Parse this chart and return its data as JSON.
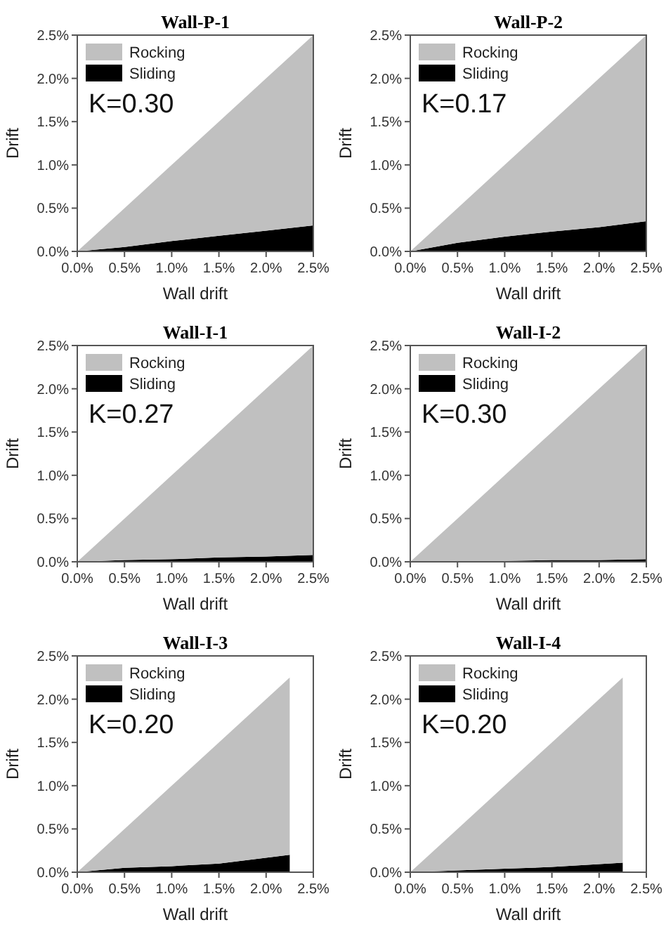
{
  "chart_data": [
    {
      "type": "area",
      "stacked": true,
      "title": "Wall-P-1",
      "xlabel": "Wall drift",
      "ylabel": "Drift",
      "annotations": [
        "K=0.30"
      ],
      "legend": "top left",
      "grid": false,
      "x": [
        0,
        0.5,
        1,
        1.5,
        2,
        2.5
      ],
      "xlim": [
        0,
        2.5
      ],
      "ylim": [
        0,
        2.5
      ],
      "xticks": [
        {
          "value": 0,
          "label": "0.0%"
        },
        {
          "value": 0.5,
          "label": "0.5%"
        },
        {
          "value": 1,
          "label": "1.0%"
        },
        {
          "value": 1.5,
          "label": "1.5%"
        },
        {
          "value": 2,
          "label": "2.0%"
        },
        {
          "value": 2.5,
          "label": "2.5%"
        }
      ],
      "yticks": [
        {
          "value": 0,
          "label": "0.0%"
        },
        {
          "value": 0.5,
          "label": "0.5%"
        },
        {
          "value": 1,
          "label": "1.0%"
        },
        {
          "value": 1.5,
          "label": "1.5%"
        },
        {
          "value": 2,
          "label": "2.0%"
        },
        {
          "value": 2.5,
          "label": "2.5%"
        }
      ],
      "series": [
        {
          "name": "Sliding",
          "color": "#000000",
          "values": [
            0,
            0.05,
            0.12,
            0.18,
            0.24,
            0.3
          ]
        },
        {
          "name": "Rocking",
          "color": "#c0c0c0",
          "values": [
            0,
            0.45,
            0.88,
            1.32,
            1.76,
            2.2
          ]
        }
      ]
    },
    {
      "type": "area",
      "stacked": true,
      "title": "Wall-P-2",
      "xlabel": "Wall drift",
      "ylabel": "Drift",
      "annotations": [
        "K=0.17"
      ],
      "legend": "top left",
      "grid": false,
      "x": [
        0,
        0.5,
        1,
        1.5,
        2,
        2.5
      ],
      "xlim": [
        0,
        2.5
      ],
      "ylim": [
        0,
        2.5
      ],
      "xticks": [
        {
          "value": 0,
          "label": "0.0%"
        },
        {
          "value": 0.5,
          "label": "0.5%"
        },
        {
          "value": 1,
          "label": "1.0%"
        },
        {
          "value": 1.5,
          "label": "1.5%"
        },
        {
          "value": 2,
          "label": "2.0%"
        },
        {
          "value": 2.5,
          "label": "2.5%"
        }
      ],
      "yticks": [
        {
          "value": 0,
          "label": "0.0%"
        },
        {
          "value": 0.5,
          "label": "0.5%"
        },
        {
          "value": 1,
          "label": "1.0%"
        },
        {
          "value": 1.5,
          "label": "1.5%"
        },
        {
          "value": 2,
          "label": "2.0%"
        },
        {
          "value": 2.5,
          "label": "2.5%"
        }
      ],
      "series": [
        {
          "name": "Sliding",
          "color": "#000000",
          "values": [
            0,
            0.1,
            0.17,
            0.23,
            0.28,
            0.35
          ]
        },
        {
          "name": "Rocking",
          "color": "#c0c0c0",
          "values": [
            0,
            0.4,
            0.83,
            1.27,
            1.72,
            2.15
          ]
        }
      ]
    },
    {
      "type": "area",
      "stacked": true,
      "title": "Wall-I-1",
      "xlabel": "Wall drift",
      "ylabel": "Drift",
      "annotations": [
        "K=0.27"
      ],
      "legend": "top left",
      "grid": false,
      "x": [
        0,
        0.5,
        1,
        1.5,
        2,
        2.5
      ],
      "xlim": [
        0,
        2.5
      ],
      "ylim": [
        0,
        2.5
      ],
      "xticks": [
        {
          "value": 0,
          "label": "0.0%"
        },
        {
          "value": 0.5,
          "label": "0.5%"
        },
        {
          "value": 1,
          "label": "1.0%"
        },
        {
          "value": 1.5,
          "label": "1.5%"
        },
        {
          "value": 2,
          "label": "2.0%"
        },
        {
          "value": 2.5,
          "label": "2.5%"
        }
      ],
      "yticks": [
        {
          "value": 0,
          "label": "0.0%"
        },
        {
          "value": 0.5,
          "label": "0.5%"
        },
        {
          "value": 1,
          "label": "1.0%"
        },
        {
          "value": 1.5,
          "label": "1.5%"
        },
        {
          "value": 2,
          "label": "2.0%"
        },
        {
          "value": 2.5,
          "label": "2.5%"
        }
      ],
      "series": [
        {
          "name": "Sliding",
          "color": "#000000",
          "values": [
            0,
            0.02,
            0.03,
            0.05,
            0.06,
            0.08
          ]
        },
        {
          "name": "Rocking",
          "color": "#c0c0c0",
          "values": [
            0,
            0.48,
            0.97,
            1.45,
            1.94,
            2.42
          ]
        }
      ]
    },
    {
      "type": "area",
      "stacked": true,
      "title": "Wall-I-2",
      "xlabel": "Wall drift",
      "ylabel": "Drift",
      "annotations": [
        "K=0.30"
      ],
      "legend": "top left",
      "grid": false,
      "x": [
        0,
        0.5,
        1,
        1.5,
        2,
        2.5
      ],
      "xlim": [
        0,
        2.5
      ],
      "ylim": [
        0,
        2.5
      ],
      "xticks": [
        {
          "value": 0,
          "label": "0.0%"
        },
        {
          "value": 0.5,
          "label": "0.5%"
        },
        {
          "value": 1,
          "label": "1.0%"
        },
        {
          "value": 1.5,
          "label": "1.5%"
        },
        {
          "value": 2,
          "label": "2.0%"
        },
        {
          "value": 2.5,
          "label": "2.5%"
        }
      ],
      "yticks": [
        {
          "value": 0,
          "label": "0.0%"
        },
        {
          "value": 0.5,
          "label": "0.5%"
        },
        {
          "value": 1,
          "label": "1.0%"
        },
        {
          "value": 1.5,
          "label": "1.5%"
        },
        {
          "value": 2,
          "label": "2.0%"
        },
        {
          "value": 2.5,
          "label": "2.5%"
        }
      ],
      "series": [
        {
          "name": "Sliding",
          "color": "#000000",
          "values": [
            0,
            0.01,
            0.01,
            0.02,
            0.02,
            0.03
          ]
        },
        {
          "name": "Rocking",
          "color": "#c0c0c0",
          "values": [
            0,
            0.49,
            0.99,
            1.48,
            1.98,
            2.47
          ]
        }
      ]
    },
    {
      "type": "area",
      "stacked": true,
      "title": "Wall-I-3",
      "xlabel": "Wall drift",
      "ylabel": "Drift",
      "annotations": [
        "K=0.20"
      ],
      "legend": "top left",
      "grid": false,
      "x": [
        0,
        0.5,
        1,
        1.5,
        2.25
      ],
      "xlim": [
        0,
        2.5
      ],
      "ylim": [
        0,
        2.5
      ],
      "xticks": [
        {
          "value": 0,
          "label": "0.0%"
        },
        {
          "value": 0.5,
          "label": "0.5%"
        },
        {
          "value": 1,
          "label": "1.0%"
        },
        {
          "value": 1.5,
          "label": "1.5%"
        },
        {
          "value": 2,
          "label": "2.0%"
        },
        {
          "value": 2.5,
          "label": "2.5%"
        }
      ],
      "yticks": [
        {
          "value": 0,
          "label": "0.0%"
        },
        {
          "value": 0.5,
          "label": "0.5%"
        },
        {
          "value": 1,
          "label": "1.0%"
        },
        {
          "value": 1.5,
          "label": "1.5%"
        },
        {
          "value": 2,
          "label": "2.0%"
        },
        {
          "value": 2.5,
          "label": "2.5%"
        }
      ],
      "series": [
        {
          "name": "Sliding",
          "color": "#000000",
          "values": [
            0,
            0.05,
            0.07,
            0.1,
            0.2
          ]
        },
        {
          "name": "Rocking",
          "color": "#c0c0c0",
          "values": [
            0,
            0.45,
            0.93,
            1.4,
            2.05
          ]
        }
      ]
    },
    {
      "type": "area",
      "stacked": true,
      "title": "Wall-I-4",
      "xlabel": "Wall drift",
      "ylabel": "Drift",
      "annotations": [
        "K=0.20"
      ],
      "legend": "top left",
      "grid": false,
      "x": [
        0,
        0.5,
        1,
        1.5,
        2.25
      ],
      "xlim": [
        0,
        2.5
      ],
      "ylim": [
        0,
        2.5
      ],
      "xticks": [
        {
          "value": 0,
          "label": "0.0%"
        },
        {
          "value": 0.5,
          "label": "0.5%"
        },
        {
          "value": 1,
          "label": "1.0%"
        },
        {
          "value": 1.5,
          "label": "1.5%"
        },
        {
          "value": 2,
          "label": "2.0%"
        },
        {
          "value": 2.5,
          "label": "2.5%"
        }
      ],
      "yticks": [
        {
          "value": 0,
          "label": "0.0%"
        },
        {
          "value": 0.5,
          "label": "0.5%"
        },
        {
          "value": 1,
          "label": "1.0%"
        },
        {
          "value": 1.5,
          "label": "1.5%"
        },
        {
          "value": 2,
          "label": "2.0%"
        },
        {
          "value": 2.5,
          "label": "2.5%"
        }
      ],
      "series": [
        {
          "name": "Sliding",
          "color": "#000000",
          "values": [
            0,
            0.02,
            0.04,
            0.06,
            0.11
          ]
        },
        {
          "name": "Rocking",
          "color": "#c0c0c0",
          "values": [
            0,
            0.48,
            0.96,
            1.44,
            2.14
          ]
        }
      ]
    }
  ]
}
